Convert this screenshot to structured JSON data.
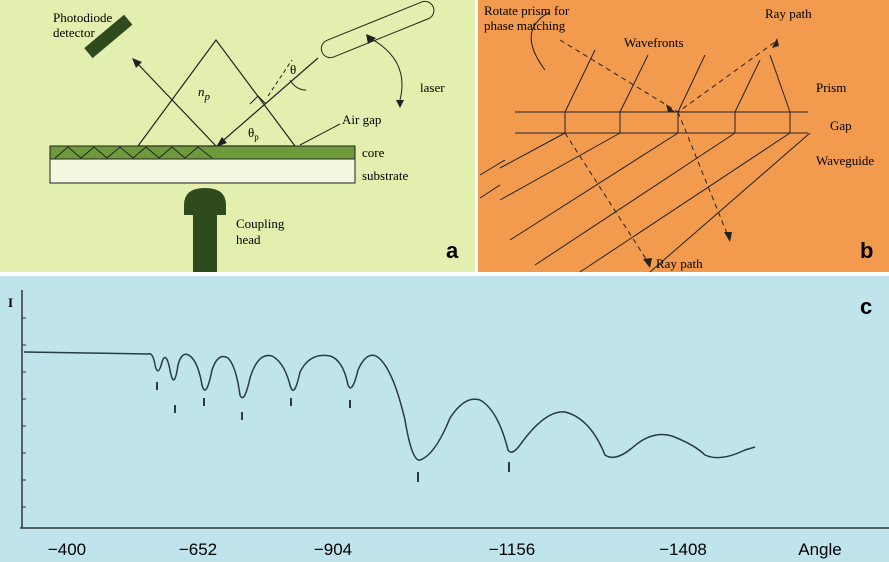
{
  "panel_a": {
    "panel_label": "a",
    "detector": [
      "Photodiode",
      "detector"
    ],
    "prism_index": {
      "base": "n",
      "sub": "p"
    },
    "angle": "θ",
    "prism_angle": {
      "base": "θ",
      "sub": "p"
    },
    "laser": "laser",
    "air_gap": "Air gap",
    "core": "core",
    "substrate": "substrate",
    "head": [
      "Coupling",
      "head"
    ]
  },
  "panel_b": {
    "panel_label": "b",
    "rotate": [
      "Rotate prism for",
      "phase matching"
    ],
    "wavefronts": "Wavefronts",
    "ray_path_top": "Ray path",
    "prism": "Prism",
    "gap": "Gap",
    "waveguide": "Waveguide",
    "ray_path_bottom": "Ray path"
  },
  "panel_c": {
    "panel_label": "c",
    "y_label": "I",
    "x_ticks": [
      "−400",
      "−652",
      "−904",
      "−1156",
      "−1408"
    ],
    "x_label": "Angle"
  }
}
